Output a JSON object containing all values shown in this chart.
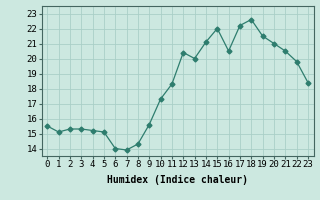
{
  "x": [
    0,
    1,
    2,
    3,
    4,
    5,
    6,
    7,
    8,
    9,
    10,
    11,
    12,
    13,
    14,
    15,
    16,
    17,
    18,
    19,
    20,
    21,
    22,
    23
  ],
  "y": [
    15.5,
    15.1,
    15.3,
    15.3,
    15.2,
    15.1,
    14.0,
    13.9,
    14.3,
    15.6,
    17.3,
    18.3,
    20.4,
    20.0,
    21.1,
    22.0,
    20.5,
    22.2,
    22.6,
    21.5,
    21.0,
    20.5,
    19.8,
    18.4
  ],
  "line_color": "#2e7d6e",
  "marker": "D",
  "marker_size": 2.5,
  "bg_color": "#cce8e0",
  "grid_color": "#aacfc7",
  "xlabel": "Humidex (Indice chaleur)",
  "ylim": [
    13.5,
    23.5
  ],
  "xlim": [
    -0.5,
    23.5
  ],
  "yticks": [
    14,
    15,
    16,
    17,
    18,
    19,
    20,
    21,
    22,
    23
  ],
  "xticks": [
    0,
    1,
    2,
    3,
    4,
    5,
    6,
    7,
    8,
    9,
    10,
    11,
    12,
    13,
    14,
    15,
    16,
    17,
    18,
    19,
    20,
    21,
    22,
    23
  ],
  "label_fontsize": 7,
  "tick_fontsize": 6.5
}
